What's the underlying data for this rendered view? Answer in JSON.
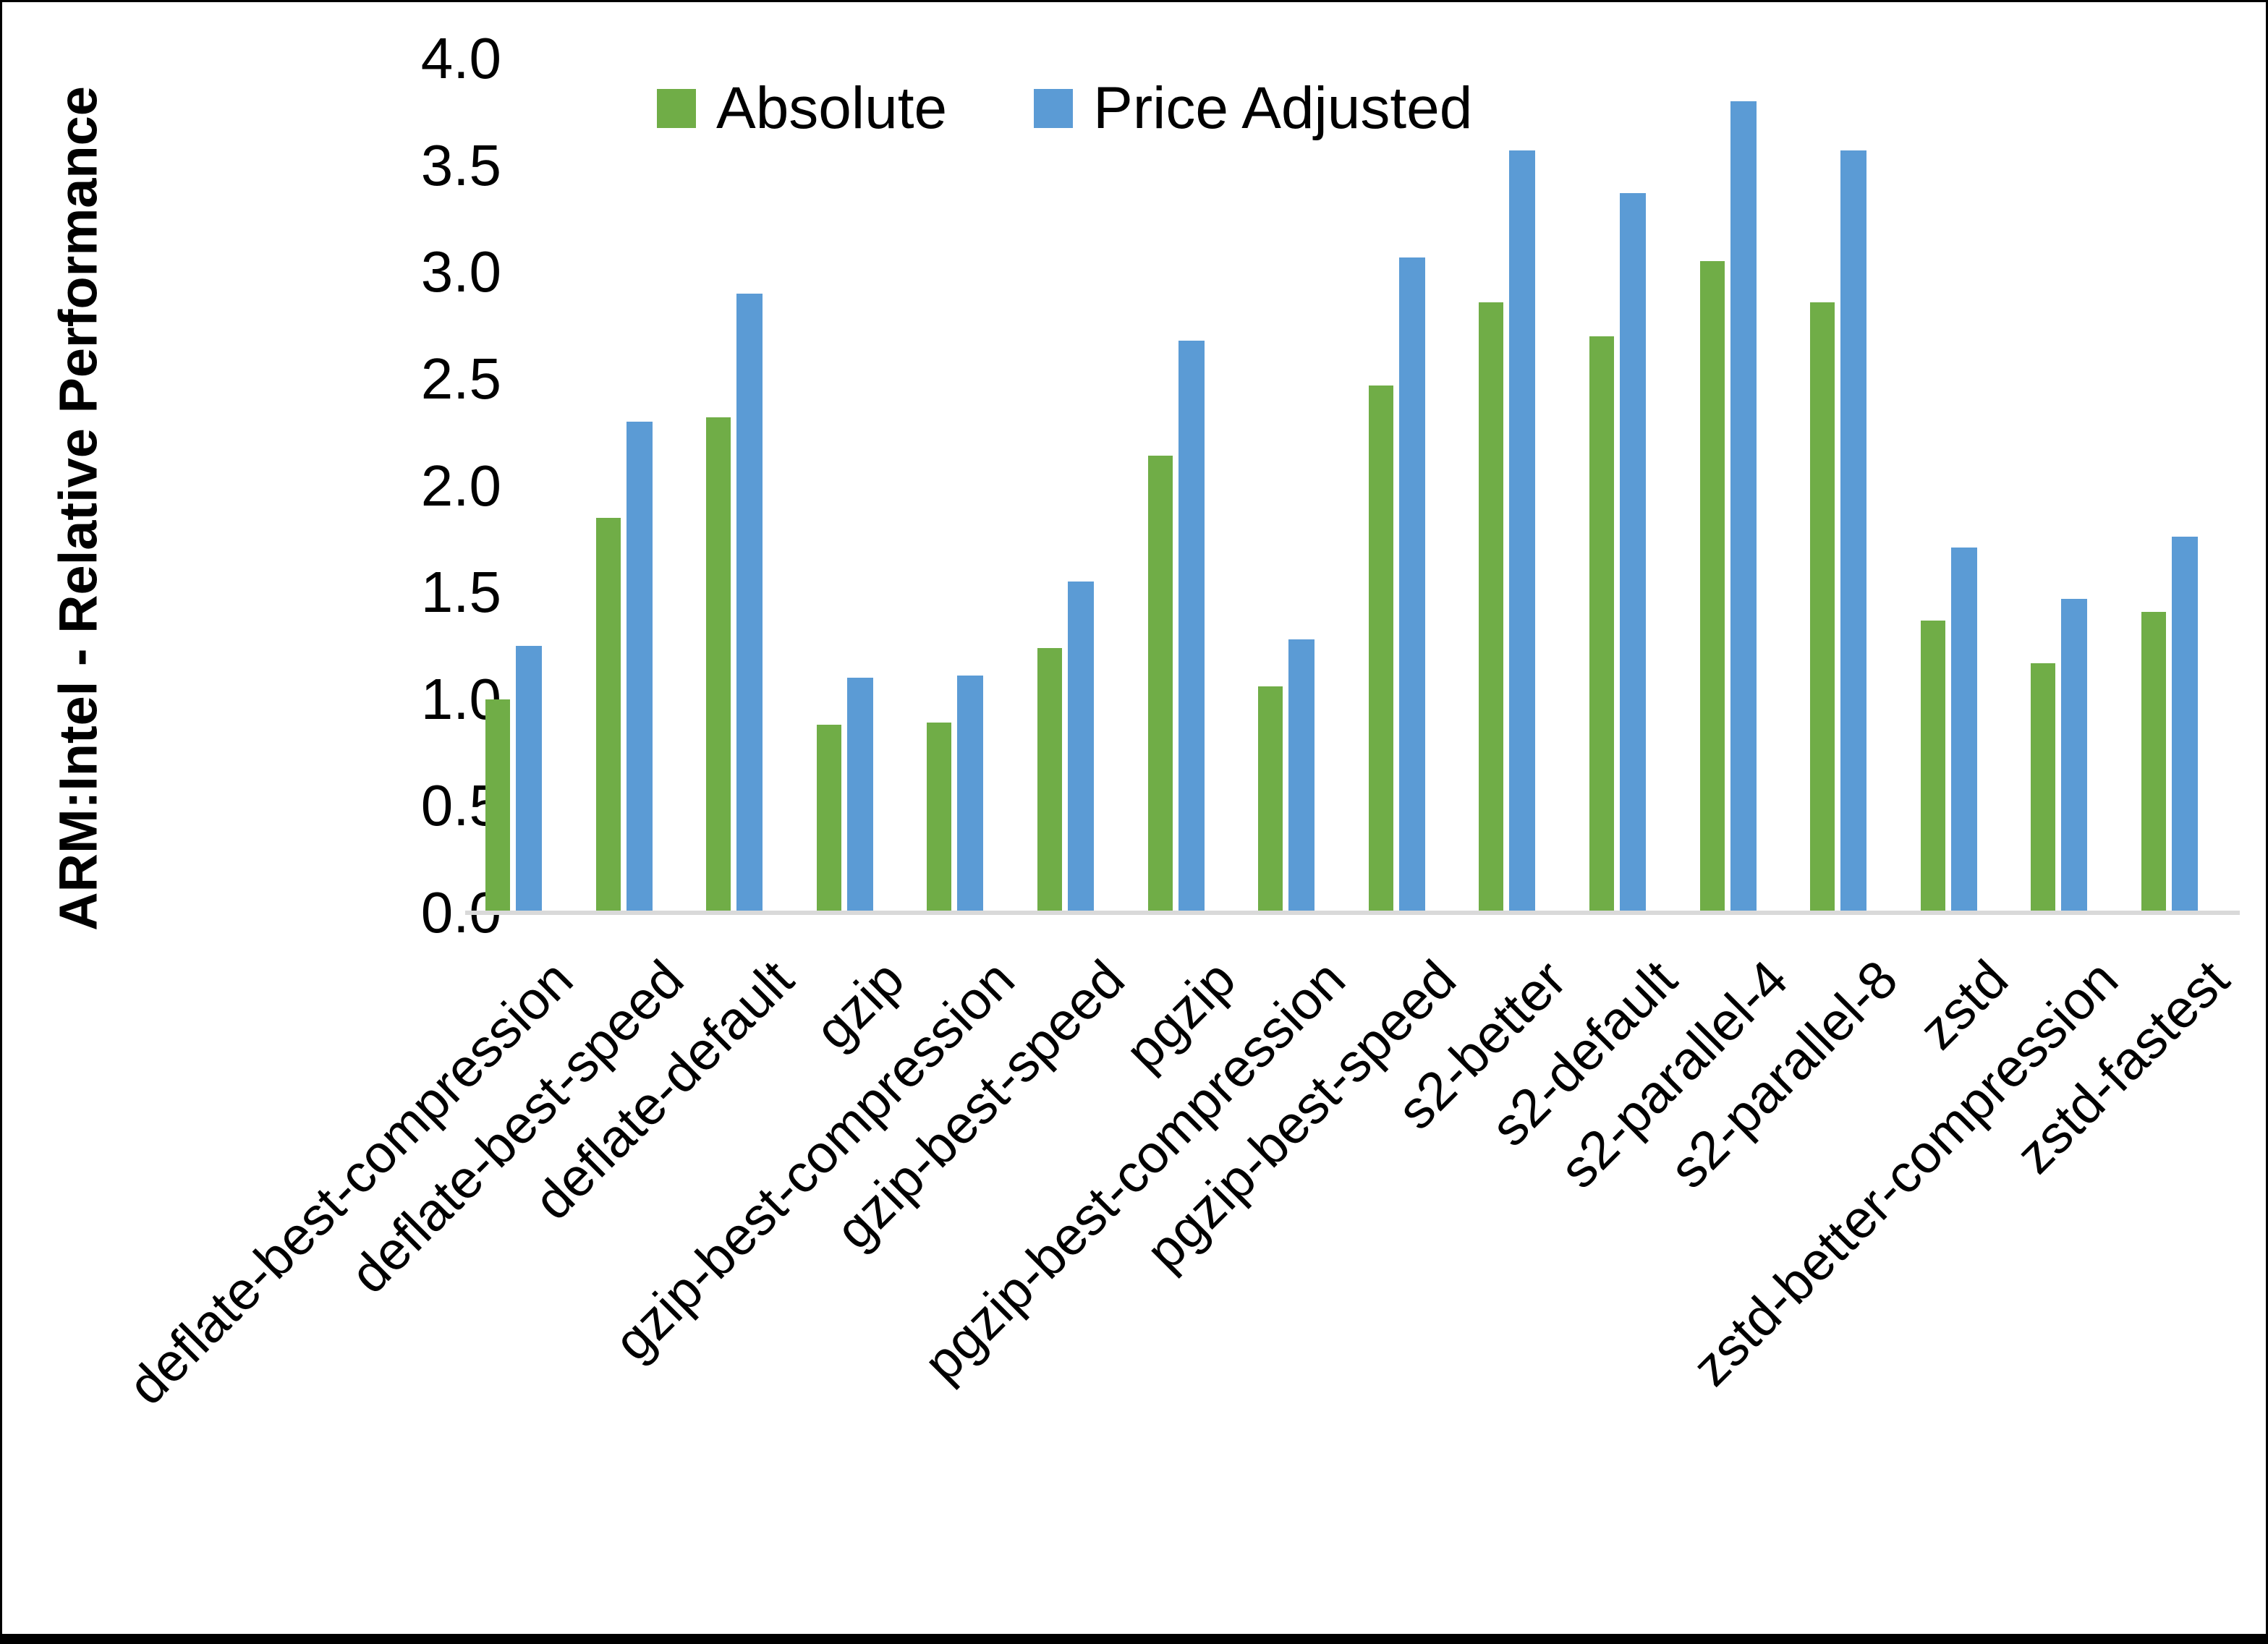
{
  "figure": {
    "y_axis_title": "ARM:Intel - Relative Performance",
    "y_tick_labels": [
      "0.0",
      "0.5",
      "1.0",
      "1.5",
      "2.0",
      "2.5",
      "3.0",
      "3.5",
      "4.0"
    ]
  },
  "legend": {
    "items": [
      {
        "label": "Absolute",
        "swatch": "green-square-icon"
      },
      {
        "label": "Price Adjusted",
        "swatch": "blue-square-icon"
      }
    ]
  },
  "colors": {
    "absolute_green": "#70AD47",
    "price_adjusted_blue": "#5B9BD5",
    "axis_line_gray": "#D9D9D9",
    "text": "#000000",
    "background": "#FFFFFF",
    "frame": "#000000"
  },
  "chart_data": {
    "type": "bar",
    "title": "",
    "xlabel": "",
    "ylabel": "ARM:Intel - Relative Performance",
    "ylim": [
      0.0,
      4.0
    ],
    "ytick_step": 0.5,
    "grid": false,
    "legend_position": "top-center",
    "bar_orientation": "vertical",
    "categories": [
      "deflate-best-compression",
      "deflate-best-speed",
      "deflate-default",
      "gzip",
      "gzip-best-compression",
      "gzip-best-speed",
      "pgzip",
      "pgzip-best-compression",
      "pgzip-best-speed",
      "s2-better",
      "s2-default",
      "s2-parallel-4",
      "s2-parallel-8",
      "zstd",
      "zstd-better-compression",
      "zstd-fastest"
    ],
    "series": [
      {
        "name": "Absolute",
        "color": "#70AD47",
        "values": [
          1.0,
          1.85,
          2.32,
          0.88,
          0.89,
          1.24,
          2.14,
          1.06,
          2.47,
          2.86,
          2.7,
          3.05,
          2.86,
          1.37,
          1.17,
          1.41
        ]
      },
      {
        "name": "Price Adjusted",
        "color": "#5B9BD5",
        "values": [
          1.25,
          2.3,
          2.9,
          1.1,
          1.11,
          1.55,
          2.68,
          1.28,
          3.07,
          3.57,
          3.37,
          3.8,
          3.57,
          1.71,
          1.47,
          1.76
        ]
      }
    ]
  }
}
